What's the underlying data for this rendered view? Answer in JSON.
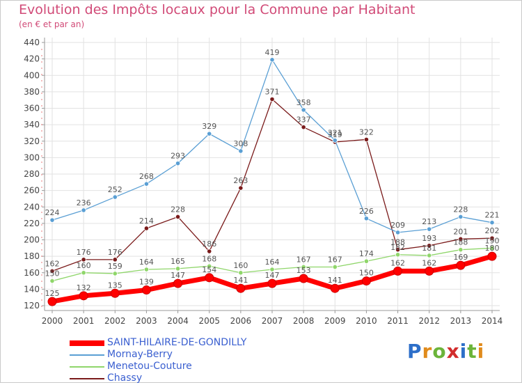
{
  "title": "Evolution des Impôts locaux pour la Commune par Habitant",
  "subtitle": "(en € et par an)",
  "logo": {
    "letters": [
      "P",
      "r",
      "o",
      "x",
      "i",
      "t",
      "i"
    ],
    "colors": [
      "#2d6fc9",
      "#e08b1c",
      "#6bb43a",
      "#d22d2d",
      "#2d6fc9",
      "#6bb43a",
      "#e08b1c"
    ]
  },
  "chart_data": {
    "type": "line",
    "x": [
      "2000",
      "2001",
      "2002",
      "2003",
      "2004",
      "2005",
      "2006",
      "2007",
      "2008",
      "2009",
      "2010",
      "2011",
      "2012",
      "2013",
      "2014"
    ],
    "ylim": [
      120,
      440
    ],
    "yticks": [
      120,
      140,
      160,
      180,
      200,
      220,
      240,
      260,
      280,
      300,
      320,
      340,
      360,
      380,
      400,
      420,
      440
    ],
    "grid": true,
    "legend_position": "bottom-left",
    "series": [
      {
        "name": "Chassy",
        "color": "#7a1a1a",
        "values": [
          162,
          176,
          176,
          214,
          228,
          186,
          263,
          371,
          337,
          319,
          322,
          188,
          193,
          201,
          202
        ]
      },
      {
        "name": "Mornay-Berry",
        "color": "#5a9fd4",
        "values": [
          224,
          236,
          252,
          268,
          293,
          329,
          308,
          419,
          358,
          321,
          226,
          209,
          213,
          228,
          221
        ]
      },
      {
        "name": "Menetou-Couture",
        "color": "#8fd66a",
        "values": [
          150,
          160,
          159,
          164,
          165,
          168,
          160,
          164,
          167,
          167,
          174,
          182,
          181,
          188,
          190
        ]
      },
      {
        "name": "SAINT-HILAIRE-DE-GONDILLY",
        "color": "#ff0000",
        "values": [
          125,
          132,
          135,
          139,
          147,
          154,
          141,
          147,
          153,
          141,
          150,
          162,
          162,
          169,
          180
        ]
      }
    ],
    "legend_order": [
      "SAINT-HILAIRE-DE-GONDILLY",
      "Mornay-Berry",
      "Menetou-Couture",
      "Chassy"
    ]
  }
}
